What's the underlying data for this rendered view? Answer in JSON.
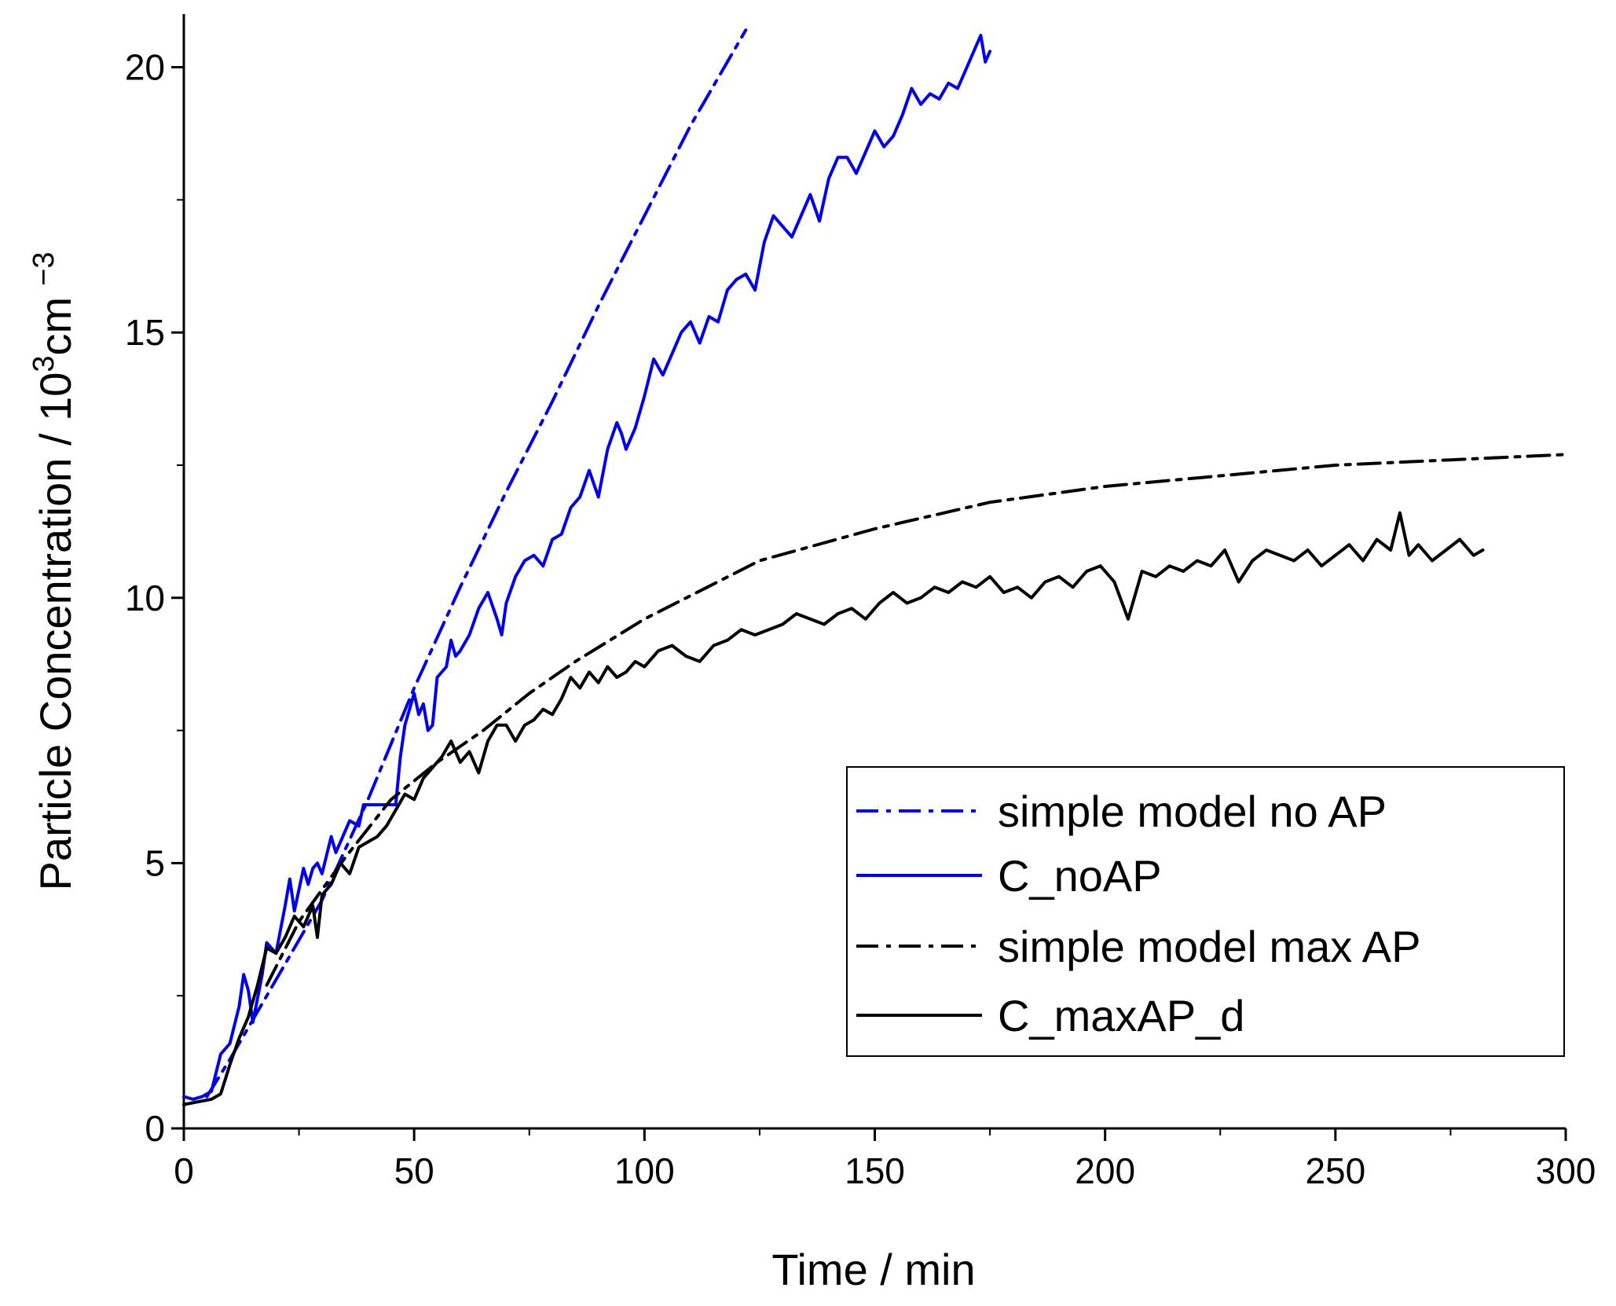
{
  "chart_data": {
    "type": "line",
    "title": "",
    "xlabel": "Time / min",
    "ylabel": "Particle Concentration / 10³cm⁻³",
    "ylabel_parts": {
      "main": "Particle Concentration / 10",
      "sup1": "3",
      "mid": "cm",
      "sup2": "−3"
    },
    "xlim": [
      0,
      300
    ],
    "ylim": [
      0,
      21
    ],
    "x_ticks": [
      0,
      50,
      100,
      150,
      200,
      250,
      300
    ],
    "y_ticks": [
      0,
      5,
      10,
      15,
      20
    ],
    "grid": false,
    "legend_position": "lower-right",
    "series": [
      {
        "name": "simple model no AP",
        "color": "#0000ee",
        "style": "dashdot",
        "x": [
          5,
          10,
          20,
          30,
          40,
          50,
          60,
          70,
          80,
          90,
          100,
          110,
          122
        ],
        "y": [
          0.6,
          1.3,
          2.8,
          4.3,
          6.2,
          8.3,
          10.2,
          12.0,
          13.7,
          15.5,
          17.2,
          18.9,
          20.7
        ]
      },
      {
        "name": "C_noAP",
        "color": "#0000ee",
        "style": "solid",
        "x": [
          0,
          2,
          4,
          6,
          8,
          10,
          12,
          13,
          14,
          15,
          17,
          18,
          20,
          22,
          23,
          24,
          26,
          27,
          28,
          29,
          30,
          32,
          33,
          34,
          35,
          36,
          38,
          39,
          40,
          42,
          44,
          46,
          47,
          48,
          49,
          50,
          51,
          52,
          53,
          54,
          55,
          57,
          58,
          59,
          60,
          62,
          64,
          66,
          68,
          69,
          70,
          72,
          74,
          76,
          78,
          80,
          82,
          84,
          86,
          88,
          90,
          92,
          94,
          95,
          96,
          98,
          100,
          102,
          104,
          106,
          108,
          110,
          112,
          114,
          116,
          118,
          120,
          122,
          124,
          126,
          128,
          130,
          132,
          134,
          136,
          138,
          140,
          142,
          144,
          146,
          148,
          150,
          152,
          154,
          156,
          158,
          160,
          162,
          164,
          166,
          168,
          170,
          172,
          173,
          174,
          175
        ],
        "y": [
          0.6,
          0.55,
          0.6,
          0.7,
          1.4,
          1.6,
          2.3,
          2.9,
          2.6,
          2.0,
          2.9,
          3.5,
          3.3,
          4.2,
          4.7,
          4.1,
          4.9,
          4.6,
          4.9,
          5.0,
          4.8,
          5.5,
          5.2,
          5.4,
          5.6,
          5.8,
          5.7,
          6.1,
          6.1,
          6.1,
          6.1,
          6.1,
          7.0,
          7.6,
          7.9,
          8.2,
          7.8,
          8.0,
          7.5,
          7.6,
          8.5,
          8.7,
          9.2,
          8.9,
          9.0,
          9.3,
          9.8,
          10.1,
          9.6,
          9.3,
          9.9,
          10.4,
          10.7,
          10.8,
          10.6,
          11.1,
          11.2,
          11.7,
          11.9,
          12.4,
          11.9,
          12.8,
          13.3,
          13.1,
          12.8,
          13.2,
          13.8,
          14.5,
          14.2,
          14.6,
          15.0,
          15.2,
          14.8,
          15.3,
          15.2,
          15.8,
          16.0,
          16.1,
          15.8,
          16.7,
          17.2,
          17.0,
          16.8,
          17.2,
          17.6,
          17.1,
          17.9,
          18.3,
          18.3,
          18.0,
          18.4,
          18.8,
          18.5,
          18.7,
          19.1,
          19.6,
          19.3,
          19.5,
          19.4,
          19.7,
          19.6,
          20.0,
          20.4,
          20.6,
          20.1,
          20.3
        ]
      },
      {
        "name": "simple model max AP",
        "color": "#000000",
        "style": "dashdot",
        "x": [
          18,
          25,
          35,
          45,
          55,
          65,
          75,
          85,
          100,
          125,
          150,
          175,
          200,
          225,
          250,
          275,
          300
        ],
        "y": [
          2.7,
          3.9,
          5.1,
          6.2,
          6.9,
          7.5,
          8.2,
          8.8,
          9.6,
          10.7,
          11.3,
          11.8,
          12.1,
          12.3,
          12.5,
          12.6,
          12.7
        ]
      },
      {
        "name": "C_maxAP_d",
        "color": "#000000",
        "style": "solid",
        "x": [
          0,
          3,
          6,
          8,
          10,
          12,
          14,
          16,
          18,
          20,
          22,
          24,
          26,
          28,
          29,
          30,
          32,
          34,
          36,
          38,
          40,
          42,
          44,
          46,
          48,
          50,
          52,
          54,
          56,
          58,
          60,
          62,
          64,
          66,
          68,
          70,
          72,
          74,
          76,
          78,
          80,
          82,
          84,
          86,
          88,
          90,
          92,
          94,
          96,
          98,
          100,
          103,
          106,
          109,
          112,
          115,
          118,
          121,
          124,
          127,
          130,
          133,
          136,
          139,
          142,
          145,
          148,
          151,
          154,
          157,
          160,
          163,
          166,
          169,
          172,
          175,
          178,
          181,
          184,
          187,
          190,
          193,
          196,
          199,
          202,
          205,
          208,
          211,
          214,
          217,
          220,
          223,
          226,
          229,
          232,
          235,
          238,
          241,
          244,
          247,
          250,
          253,
          256,
          259,
          262,
          264,
          266,
          268,
          271,
          274,
          277,
          280,
          282
        ],
        "y": [
          0.45,
          0.5,
          0.55,
          0.65,
          1.2,
          1.7,
          2.1,
          2.7,
          3.4,
          3.3,
          3.6,
          4.0,
          3.8,
          4.2,
          3.6,
          4.4,
          4.6,
          5.0,
          4.8,
          5.3,
          5.4,
          5.5,
          5.7,
          6.0,
          6.3,
          6.2,
          6.6,
          6.8,
          7.0,
          7.3,
          6.9,
          7.1,
          6.7,
          7.3,
          7.6,
          7.6,
          7.3,
          7.6,
          7.7,
          7.9,
          7.8,
          8.1,
          8.5,
          8.3,
          8.6,
          8.4,
          8.7,
          8.5,
          8.6,
          8.8,
          8.7,
          9.0,
          9.1,
          8.9,
          8.8,
          9.1,
          9.2,
          9.4,
          9.3,
          9.4,
          9.5,
          9.7,
          9.6,
          9.5,
          9.7,
          9.8,
          9.6,
          9.9,
          10.1,
          9.9,
          10.0,
          10.2,
          10.1,
          10.3,
          10.2,
          10.4,
          10.1,
          10.2,
          10.0,
          10.3,
          10.4,
          10.2,
          10.5,
          10.6,
          10.3,
          9.6,
          10.5,
          10.4,
          10.6,
          10.5,
          10.7,
          10.6,
          10.9,
          10.3,
          10.7,
          10.9,
          10.8,
          10.7,
          10.9,
          10.6,
          10.8,
          11.0,
          10.7,
          11.1,
          10.9,
          11.6,
          10.8,
          11.0,
          10.7,
          10.9,
          11.1,
          10.8,
          10.9
        ]
      }
    ]
  }
}
